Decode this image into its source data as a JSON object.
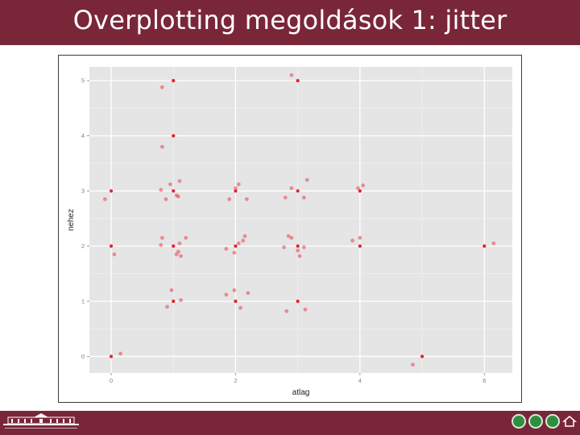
{
  "slide": {
    "title": "Overplotting megoldások 1: jitter"
  },
  "colors": {
    "title_bar": "#7a2639",
    "panel_bg": "#e5e5e5",
    "grid": "#ffffff",
    "point": "#e8202a",
    "tick_text": "#7f7f7f"
  },
  "footer": {
    "logo_icon": "university-building-logo",
    "nav_icons": [
      "nav-prev-icon",
      "nav-toc-icon",
      "nav-menu-icon",
      "nav-home-icon"
    ]
  },
  "chart_data": {
    "type": "scatter",
    "title": "",
    "xlabel": "atlag",
    "ylabel": "nehez",
    "xlim": [
      -0.35,
      6.45
    ],
    "ylim": [
      -0.3,
      5.25
    ],
    "xticks": [
      0,
      2,
      4,
      6
    ],
    "yticks": [
      0,
      1,
      2,
      3,
      4,
      5
    ],
    "grid": true,
    "legend": "none",
    "series": [
      {
        "style": "solid",
        "points": [
          [
            1,
            5
          ],
          [
            3,
            5
          ],
          [
            1,
            4
          ],
          [
            0,
            3
          ],
          [
            1,
            3
          ],
          [
            2,
            3
          ],
          [
            3,
            3
          ],
          [
            4,
            3
          ],
          [
            0,
            2
          ],
          [
            1,
            2
          ],
          [
            2,
            2
          ],
          [
            3,
            2
          ],
          [
            4,
            2
          ],
          [
            6,
            2
          ],
          [
            1,
            1
          ],
          [
            2,
            1
          ],
          [
            3,
            1
          ],
          [
            0,
            0
          ],
          [
            5,
            0
          ]
        ]
      },
      {
        "style": "faint",
        "points": [
          [
            0.82,
            4.88
          ],
          [
            2.9,
            5.1
          ],
          [
            0.82,
            3.8
          ],
          [
            -0.1,
            2.85
          ],
          [
            0.88,
            2.85
          ],
          [
            0.95,
            3.12
          ],
          [
            1.05,
            2.92
          ],
          [
            1.1,
            3.18
          ],
          [
            1.08,
            2.9
          ],
          [
            0.8,
            3.02
          ],
          [
            1.9,
            2.85
          ],
          [
            2.0,
            3.05
          ],
          [
            2.05,
            3.12
          ],
          [
            2.18,
            2.85
          ],
          [
            2.8,
            2.88
          ],
          [
            2.9,
            3.05
          ],
          [
            3.1,
            2.88
          ],
          [
            3.15,
            3.2
          ],
          [
            3.97,
            3.05
          ],
          [
            4.05,
            3.1
          ],
          [
            0.05,
            1.85
          ],
          [
            0.82,
            2.15
          ],
          [
            0.8,
            2.02
          ],
          [
            1.05,
            1.85
          ],
          [
            1.12,
            1.82
          ],
          [
            1.1,
            2.05
          ],
          [
            1.2,
            2.15
          ],
          [
            1.08,
            1.9
          ],
          [
            1.85,
            1.95
          ],
          [
            1.98,
            1.88
          ],
          [
            2.05,
            2.05
          ],
          [
            2.12,
            2.1
          ],
          [
            2.15,
            2.18
          ],
          [
            2.78,
            1.98
          ],
          [
            2.85,
            2.18
          ],
          [
            2.9,
            2.15
          ],
          [
            3.0,
            1.92
          ],
          [
            3.03,
            1.82
          ],
          [
            3.1,
            1.98
          ],
          [
            3.88,
            2.1
          ],
          [
            4.0,
            2.15
          ],
          [
            6.15,
            2.05
          ],
          [
            0.9,
            0.9
          ],
          [
            0.97,
            1.2
          ],
          [
            1.12,
            1.02
          ],
          [
            1.85,
            1.12
          ],
          [
            1.98,
            1.2
          ],
          [
            2.08,
            0.88
          ],
          [
            2.2,
            1.15
          ],
          [
            2.82,
            0.82
          ],
          [
            3.12,
            0.85
          ],
          [
            0.15,
            0.05
          ],
          [
            4.85,
            -0.15
          ]
        ]
      }
    ]
  }
}
